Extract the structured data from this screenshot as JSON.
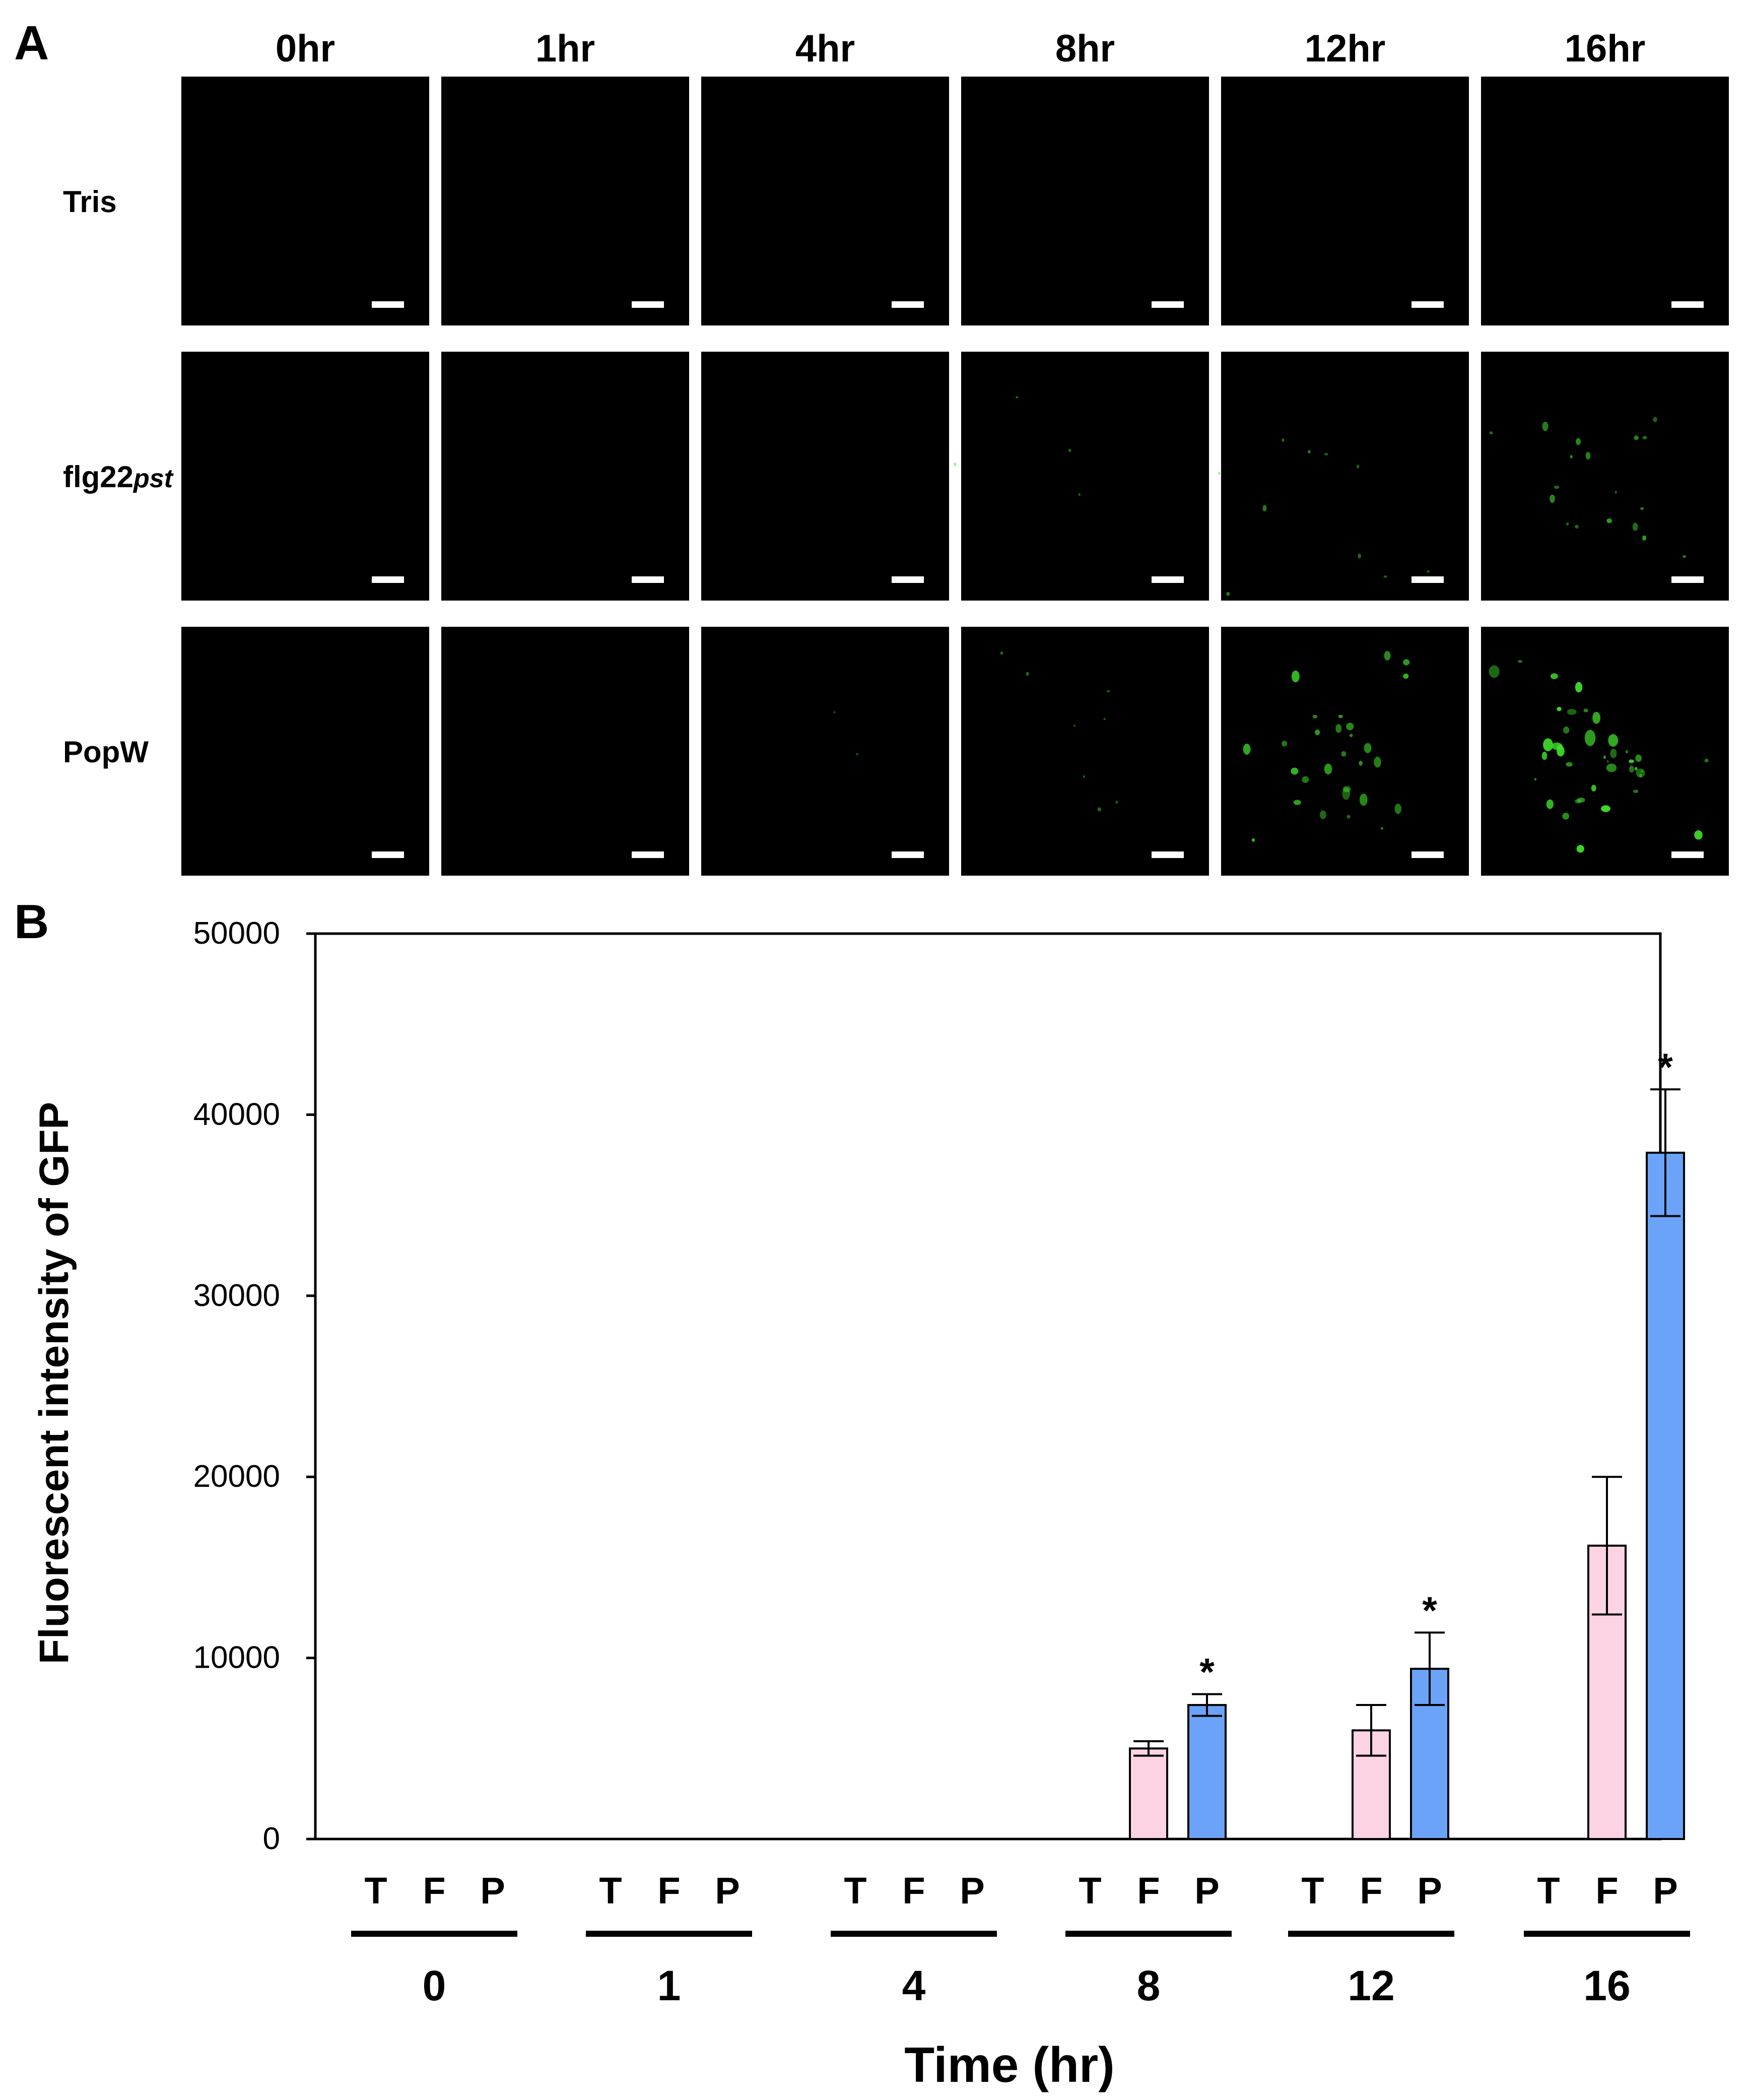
{
  "panel_a": {
    "letter": "A",
    "column_headers": [
      "0hr",
      "1hr",
      "4hr",
      "8hr",
      "12hr",
      "16hr"
    ],
    "rows": [
      {
        "label": "Tris",
        "label_italic": ""
      },
      {
        "label": "flg22",
        "label_italic": "pst"
      },
      {
        "label": "PopW",
        "label_italic": ""
      }
    ],
    "panel_color": "#000000",
    "scale_bar_color": "#ffffff",
    "fluorescence_color": "#3fdc2a",
    "fluorescence_level": [
      [
        0,
        0,
        0,
        0,
        0,
        0
      ],
      [
        0,
        0,
        0,
        0.1,
        0.25,
        0.45
      ],
      [
        0,
        0,
        0.05,
        0.2,
        0.7,
        1.0
      ]
    ]
  },
  "panel_b": {
    "letter": "B"
  },
  "chart_data": {
    "type": "bar",
    "xlabel": "Time (hr)",
    "ylabel": "Fluorescent intensity of GFP",
    "ylim": [
      0,
      50000
    ],
    "yticks": [
      "0",
      "10000",
      "20000",
      "30000",
      "40000",
      "50000"
    ],
    "ytick_values": [
      0,
      10000,
      20000,
      30000,
      40000,
      50000
    ],
    "grid": false,
    "time_groups": [
      "0",
      "1",
      "4",
      "8",
      "12",
      "16"
    ],
    "treatment_letters": [
      "T",
      "F",
      "P"
    ],
    "series": [
      {
        "name": "T",
        "color": "#ffffff",
        "values": [
          0,
          0,
          0,
          0,
          0,
          0
        ],
        "errors": [
          0,
          0,
          0,
          0,
          0,
          0
        ],
        "significant": [
          false,
          false,
          false,
          false,
          false,
          false
        ]
      },
      {
        "name": "F",
        "color": "#fbd3e3",
        "values": [
          0,
          0,
          0,
          5000,
          6000,
          16200
        ],
        "errors": [
          0,
          0,
          0,
          400,
          1400,
          3800
        ],
        "significant": [
          false,
          false,
          false,
          false,
          false,
          false
        ]
      },
      {
        "name": "P",
        "color": "#6aa3f8",
        "values": [
          0,
          0,
          0,
          7400,
          9400,
          37900
        ],
        "errors": [
          0,
          0,
          0,
          600,
          2000,
          3500
        ],
        "significant": [
          false,
          false,
          false,
          true,
          true,
          true
        ]
      }
    ],
    "significance_marker": "*"
  }
}
